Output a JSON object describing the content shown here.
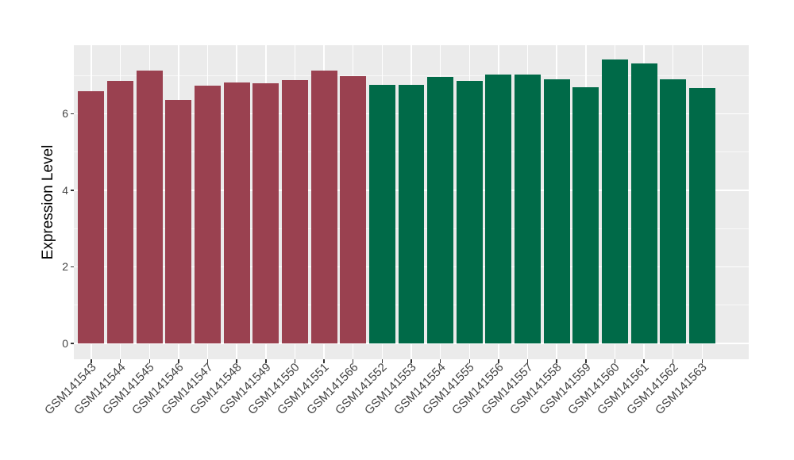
{
  "chart_data": {
    "type": "bar",
    "title": "",
    "xlabel": "",
    "ylabel": "Expression Level",
    "categories": [
      "GSM141543",
      "GSM141544",
      "GSM141545",
      "GSM141546",
      "GSM141547",
      "GSM141548",
      "GSM141549",
      "GSM141550",
      "GSM141551",
      "GSM141566",
      "GSM141552",
      "GSM141553",
      "GSM141554",
      "GSM141555",
      "GSM141556",
      "GSM141557",
      "GSM141558",
      "GSM141559",
      "GSM141560",
      "GSM141561",
      "GSM141562",
      "GSM141563"
    ],
    "values": [
      6.58,
      6.85,
      7.13,
      6.35,
      6.73,
      6.81,
      6.8,
      6.87,
      7.12,
      6.97,
      6.75,
      6.76,
      6.96,
      6.85,
      7.03,
      7.02,
      6.89,
      6.68,
      7.42,
      7.32,
      6.89,
      6.67
    ],
    "group_index": [
      0,
      0,
      0,
      0,
      0,
      0,
      0,
      0,
      0,
      0,
      1,
      1,
      1,
      1,
      1,
      1,
      1,
      1,
      1,
      1,
      1,
      1
    ],
    "group_colors": [
      "#9A4150",
      "#006A48"
    ],
    "yticks": [
      0,
      2,
      4,
      6
    ],
    "yticks_minor": [
      1,
      3,
      5,
      7
    ],
    "ylim": [
      -0.4,
      7.8
    ],
    "bar_width_fraction": 0.9,
    "grid": true,
    "legend": "none",
    "panel_bg": "#EBEBEB",
    "grid_color": "#FFFFFF",
    "axis_text_color": "#444444",
    "axis_title_color": "#000000",
    "tick_color": "#333333"
  }
}
